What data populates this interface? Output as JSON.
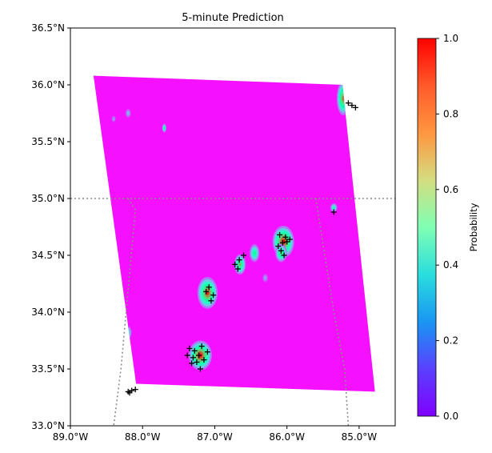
{
  "chart_data": {
    "type": "heatmap",
    "title": "5-minute Prediction",
    "xlabel": "",
    "ylabel": "",
    "xlim": [
      -89.0,
      -84.5
    ],
    "ylim": [
      33.0,
      36.5
    ],
    "x_ticks": [
      {
        "value": -89.0,
        "label": "89.0°W"
      },
      {
        "value": -88.0,
        "label": "88.0°W"
      },
      {
        "value": -87.0,
        "label": "87.0°W"
      },
      {
        "value": -86.0,
        "label": "86.0°W"
      },
      {
        "value": -85.0,
        "label": "85.0°W"
      }
    ],
    "y_ticks": [
      {
        "value": 33.0,
        "label": "33.0°N"
      },
      {
        "value": 33.5,
        "label": "33.5°N"
      },
      {
        "value": 34.0,
        "label": "34.0°N"
      },
      {
        "value": 34.5,
        "label": "34.5°N"
      },
      {
        "value": 35.0,
        "label": "35.0°N"
      },
      {
        "value": 35.5,
        "label": "35.5°N"
      },
      {
        "value": 36.0,
        "label": "36.0°N"
      },
      {
        "value": 36.5,
        "label": "36.5°N"
      }
    ],
    "domain_corners": [
      {
        "lon": -88.68,
        "lat": 36.08
      },
      {
        "lon": -85.23,
        "lat": 36.0
      },
      {
        "lon": -84.78,
        "lat": 33.3
      },
      {
        "lon": -88.09,
        "lat": 33.37
      }
    ],
    "background_probability": 0.02,
    "colorbar": {
      "label": "Probability",
      "range": [
        0.0,
        1.0
      ],
      "cmap": "rainbow",
      "ticks": [
        {
          "value": 0.0,
          "label": "0.0"
        },
        {
          "value": 0.2,
          "label": "0.2"
        },
        {
          "value": 0.4,
          "label": "0.4"
        },
        {
          "value": 0.6,
          "label": "0.6"
        },
        {
          "value": 0.8,
          "label": "0.8"
        },
        {
          "value": 1.0,
          "label": "1.0"
        }
      ]
    },
    "boundary_lines": [
      {
        "name": "state-border-lat-35",
        "points": [
          [
            -89.0,
            35.0
          ],
          [
            -84.5,
            35.0
          ]
        ]
      },
      {
        "name": "state-border-ms-al",
        "points": [
          [
            -88.2,
            35.0
          ],
          [
            -88.1,
            34.9
          ],
          [
            -88.3,
            33.5
          ],
          [
            -88.4,
            33.0
          ]
        ]
      },
      {
        "name": "state-border-al-ga",
        "points": [
          [
            -85.6,
            35.0
          ],
          [
            -85.35,
            34.0
          ],
          [
            -85.2,
            33.5
          ],
          [
            -85.15,
            33.0
          ]
        ]
      }
    ],
    "cells": [
      {
        "lon": -87.2,
        "lat": 33.62,
        "rx": 0.16,
        "ry": 0.13,
        "peak": 1.0
      },
      {
        "lon": -87.1,
        "lat": 34.17,
        "rx": 0.14,
        "ry": 0.14,
        "peak": 0.95
      },
      {
        "lon": -86.05,
        "lat": 34.62,
        "rx": 0.15,
        "ry": 0.14,
        "peak": 1.0
      },
      {
        "lon": -86.08,
        "lat": 34.52,
        "rx": 0.08,
        "ry": 0.08,
        "peak": 0.7
      },
      {
        "lon": -86.65,
        "lat": 34.42,
        "rx": 0.08,
        "ry": 0.09,
        "peak": 0.75
      },
      {
        "lon": -86.45,
        "lat": 34.52,
        "rx": 0.07,
        "ry": 0.08,
        "peak": 0.6
      },
      {
        "lon": -85.22,
        "lat": 35.88,
        "rx": 0.09,
        "ry": 0.15,
        "peak": 0.85
      },
      {
        "lon": -88.15,
        "lat": 33.4,
        "rx": 0.05,
        "ry": 0.05,
        "peak": 0.6
      },
      {
        "lon": -88.2,
        "lat": 33.82,
        "rx": 0.05,
        "ry": 0.06,
        "peak": 0.45
      },
      {
        "lon": -87.7,
        "lat": 35.62,
        "rx": 0.03,
        "ry": 0.04,
        "peak": 0.6
      },
      {
        "lon": -85.35,
        "lat": 34.92,
        "rx": 0.05,
        "ry": 0.04,
        "peak": 0.5
      },
      {
        "lon": -88.2,
        "lat": 35.75,
        "rx": 0.04,
        "ry": 0.04,
        "peak": 0.3
      },
      {
        "lon": -88.4,
        "lat": 35.7,
        "rx": 0.03,
        "ry": 0.03,
        "peak": 0.25
      },
      {
        "lon": -86.3,
        "lat": 34.3,
        "rx": 0.04,
        "ry": 0.04,
        "peak": 0.25
      }
    ],
    "markers": [
      {
        "lon": -88.2,
        "lat": 33.3
      },
      {
        "lon": -88.15,
        "lat": 33.31
      },
      {
        "lon": -88.1,
        "lat": 33.32
      },
      {
        "lon": -88.18,
        "lat": 33.29
      },
      {
        "lon": -87.35,
        "lat": 33.68
      },
      {
        "lon": -87.28,
        "lat": 33.66
      },
      {
        "lon": -87.22,
        "lat": 33.62
      },
      {
        "lon": -87.3,
        "lat": 33.6
      },
      {
        "lon": -87.18,
        "lat": 33.7
      },
      {
        "lon": -87.25,
        "lat": 33.56
      },
      {
        "lon": -87.38,
        "lat": 33.62
      },
      {
        "lon": -87.15,
        "lat": 33.58
      },
      {
        "lon": -87.2,
        "lat": 33.5
      },
      {
        "lon": -87.32,
        "lat": 33.55
      },
      {
        "lon": -87.1,
        "lat": 33.65
      },
      {
        "lon": -87.08,
        "lat": 34.22
      },
      {
        "lon": -87.02,
        "lat": 34.15
      },
      {
        "lon": -87.05,
        "lat": 34.1
      },
      {
        "lon": -87.12,
        "lat": 34.18
      },
      {
        "lon": -86.72,
        "lat": 34.42
      },
      {
        "lon": -86.66,
        "lat": 34.46
      },
      {
        "lon": -86.6,
        "lat": 34.5
      },
      {
        "lon": -86.68,
        "lat": 34.38
      },
      {
        "lon": -86.1,
        "lat": 34.68
      },
      {
        "lon": -86.02,
        "lat": 34.66
      },
      {
        "lon": -86.06,
        "lat": 34.61
      },
      {
        "lon": -86.12,
        "lat": 34.58
      },
      {
        "lon": -86.0,
        "lat": 34.62
      },
      {
        "lon": -86.08,
        "lat": 34.54
      },
      {
        "lon": -86.04,
        "lat": 34.5
      },
      {
        "lon": -85.96,
        "lat": 34.64
      },
      {
        "lon": -85.35,
        "lat": 34.88
      },
      {
        "lon": -85.15,
        "lat": 35.84
      },
      {
        "lon": -85.1,
        "lat": 35.82
      },
      {
        "lon": -85.05,
        "lat": 35.8
      }
    ]
  }
}
